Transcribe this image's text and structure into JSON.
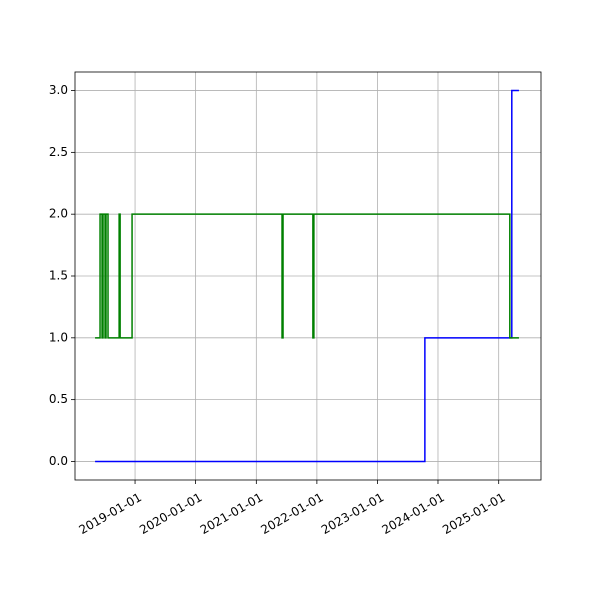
{
  "chart_data": {
    "type": "line",
    "drawstyle": "steps-post",
    "xlim": [
      "2018-01-04",
      "2025-09-13"
    ],
    "xticks": [
      "2019-01-01",
      "2020-01-01",
      "2021-01-01",
      "2022-01-01",
      "2023-01-01",
      "2024-01-01",
      "2025-01-01"
    ],
    "ylim": [
      -0.15,
      3.15
    ],
    "yticks": [
      {
        "value": 0,
        "label": "0.0"
      },
      {
        "value": 0.5,
        "label": "0.5"
      },
      {
        "value": 1,
        "label": "1.0"
      },
      {
        "value": 1.5,
        "label": "1.5"
      },
      {
        "value": 2,
        "label": "2.0"
      },
      {
        "value": 2.5,
        "label": "2.5"
      },
      {
        "value": 3,
        "label": "3.0"
      }
    ],
    "grid": true,
    "series": [
      {
        "color": "#0000ff",
        "x": [
          "2018-05-05",
          "2023-10-14",
          "2025-03-21",
          "2025-05-03"
        ],
        "values": [
          0,
          1,
          3,
          3
        ]
      },
      {
        "color": "#008000",
        "x": [
          "2018-05-05",
          "2018-06-04",
          "2018-06-16",
          "2018-06-22",
          "2018-07-04",
          "2018-07-10",
          "2018-07-22",
          "2018-09-27",
          "2018-10-03",
          "2018-12-14",
          "2021-06-05",
          "2021-06-11",
          "2021-12-08",
          "2021-12-14",
          "2025-03-09",
          "2025-05-03"
        ],
        "values": [
          1,
          2,
          1,
          2,
          1,
          2,
          1,
          2,
          1,
          2,
          1,
          2,
          1,
          2,
          1,
          1
        ]
      }
    ]
  }
}
